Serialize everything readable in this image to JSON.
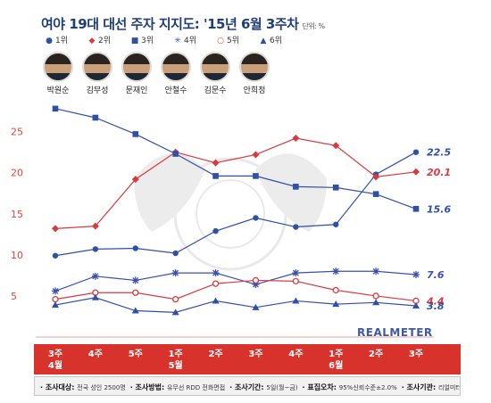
{
  "header": {
    "title": "여야 19대 대선 주자 지지도: '15년 6월 3주차",
    "unit": "단위: %"
  },
  "legend": [
    {
      "rank": "1위",
      "marker": "●",
      "color": "#2f4fa8"
    },
    {
      "rank": "2위",
      "marker": "◆",
      "color": "#d73a3f"
    },
    {
      "rank": "3위",
      "marker": "■",
      "color": "#2f4fa8"
    },
    {
      "rank": "4위",
      "marker": "✳",
      "color": "#3a4fb0"
    },
    {
      "rank": "5위",
      "marker": "○",
      "color": "#d73a3f"
    },
    {
      "rank": "6위",
      "marker": "▲",
      "color": "#2f4fa8"
    }
  ],
  "portraits": [
    "박원순",
    "김무성",
    "문재인",
    "안철수",
    "김문수",
    "안희정"
  ],
  "watermark": "REALMETER",
  "footer": {
    "items": [
      {
        "label": "조사대상",
        "value": "전국 성인 2500명"
      },
      {
        "label": "조사방법",
        "value": "유무선 RDD 전화면접"
      },
      {
        "label": "조사기간",
        "value": "5일(월~금)"
      },
      {
        "label": "표집오차",
        "value": "95%신뢰수준±2.0%"
      },
      {
        "label": "조사기관",
        "value": "리얼미터"
      }
    ]
  },
  "chart_data": {
    "type": "line",
    "categories": [
      [
        "3주",
        "4월"
      ],
      [
        "4주",
        ""
      ],
      [
        "5주",
        ""
      ],
      [
        "1주",
        "5월"
      ],
      [
        "2주",
        ""
      ],
      [
        "3주",
        ""
      ],
      [
        "4주",
        ""
      ],
      [
        "1주",
        "6월"
      ],
      [
        "2주",
        ""
      ],
      [
        "3주",
        ""
      ]
    ],
    "ylim": [
      0,
      28
    ],
    "yticks": [
      5,
      10,
      15,
      20,
      25
    ],
    "grid": false,
    "series": [
      {
        "marker": "circle",
        "color": "#2f4fa8",
        "values": [
          9.9,
          10.7,
          10.8,
          10.2,
          12.9,
          14.5,
          13.4,
          13.7,
          19.8,
          22.5
        ],
        "end_label": "22.5"
      },
      {
        "marker": "diamond",
        "color": "#d73a3f",
        "values": [
          13.2,
          13.5,
          19.2,
          22.5,
          21.2,
          22.2,
          24.2,
          23.3,
          19.5,
          20.1
        ],
        "end_label": "20.1"
      },
      {
        "marker": "square",
        "color": "#2f4fa8",
        "values": [
          27.8,
          26.7,
          24.7,
          22.3,
          19.6,
          19.6,
          18.3,
          18.2,
          17.4,
          15.6
        ],
        "end_label": "15.6"
      },
      {
        "marker": "asterisk",
        "color": "#3a4fb0",
        "values": [
          5.6,
          7.4,
          6.9,
          7.8,
          7.8,
          6.4,
          7.8,
          8.0,
          8.0,
          7.6
        ],
        "end_label": "7.6"
      },
      {
        "marker": "open-circle",
        "color": "#d73a3f",
        "values": [
          4.6,
          5.4,
          5.4,
          4.6,
          6.5,
          6.9,
          6.8,
          5.7,
          5.0,
          4.4
        ],
        "end_label": "4.4"
      },
      {
        "marker": "triangle",
        "color": "#2f4fa8",
        "values": [
          3.9,
          4.8,
          3.2,
          3.0,
          4.4,
          3.6,
          4.4,
          4.0,
          4.2,
          3.8
        ],
        "end_label": "3.8"
      }
    ]
  }
}
